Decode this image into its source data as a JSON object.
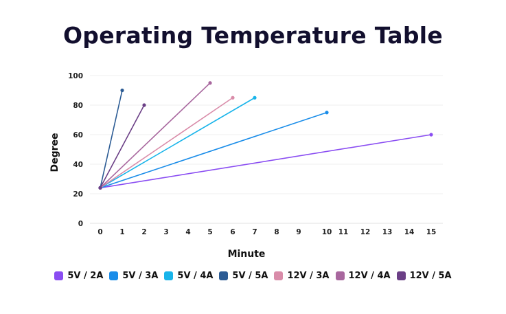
{
  "chart_data": {
    "type": "line",
    "title": "Operating Temperature Table",
    "xlabel": "Minute",
    "ylabel": "Degree",
    "x_ticks": [
      0,
      1,
      2,
      3,
      4,
      5,
      6,
      7,
      8,
      9,
      10,
      11,
      12,
      13,
      14,
      15
    ],
    "y_ticks": [
      0,
      20,
      40,
      60,
      80,
      100
    ],
    "xlim": [
      0,
      15
    ],
    "ylim": [
      0,
      100
    ],
    "grid": true,
    "legend_position": "bottom",
    "series": [
      {
        "name": "5V / 2A",
        "color": "#8a4df2",
        "points": [
          [
            0,
            24
          ],
          [
            15,
            60
          ]
        ]
      },
      {
        "name": "5V / 3A",
        "color": "#1a8de9",
        "points": [
          [
            0,
            24
          ],
          [
            10,
            75
          ]
        ]
      },
      {
        "name": "5V / 4A",
        "color": "#18b4ea",
        "points": [
          [
            0,
            24
          ],
          [
            7,
            85
          ]
        ]
      },
      {
        "name": "5V / 5A",
        "color": "#2b5b94",
        "points": [
          [
            0,
            24
          ],
          [
            1,
            90
          ]
        ]
      },
      {
        "name": "12V / 3A",
        "color": "#d98ca9",
        "points": [
          [
            0,
            24
          ],
          [
            6,
            85
          ]
        ]
      },
      {
        "name": "12V / 4A",
        "color": "#a8679e",
        "points": [
          [
            0,
            24
          ],
          [
            5,
            95
          ]
        ]
      },
      {
        "name": "12V / 5A",
        "color": "#6b3f86",
        "points": [
          [
            0,
            24
          ],
          [
            2,
            80
          ]
        ]
      }
    ]
  }
}
